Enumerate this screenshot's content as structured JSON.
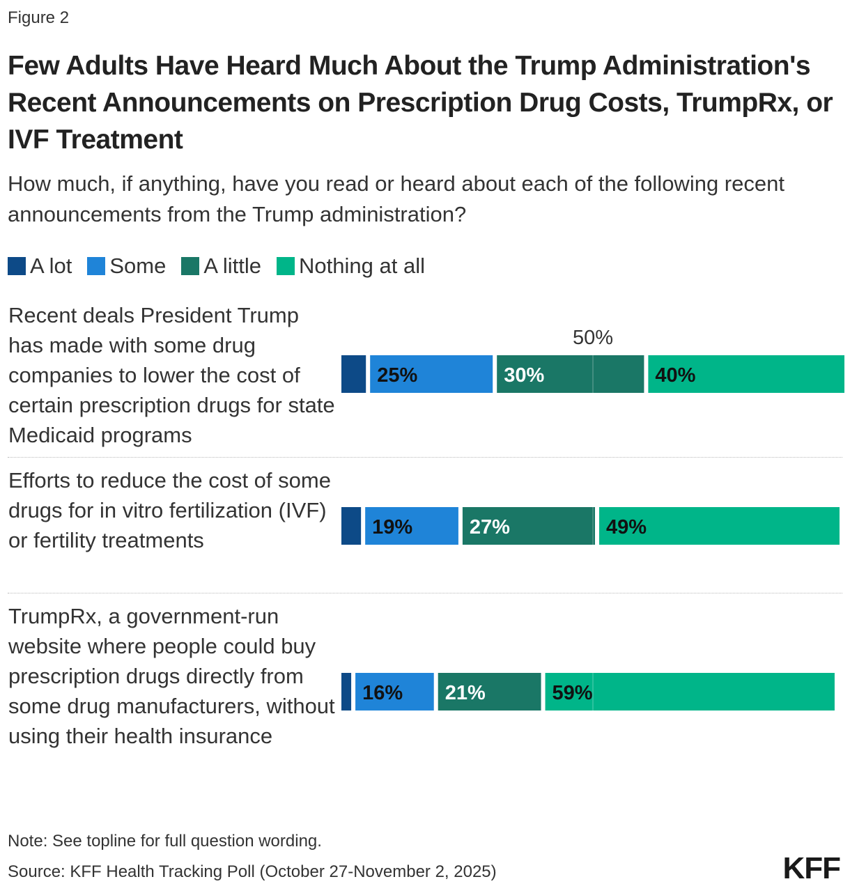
{
  "figure_label": "Figure 2",
  "title": "Few Adults Have Heard Much About the Trump Administration's Recent Announcements on Prescription Drug Costs, TrumpRx, or IVF Treatment",
  "subtitle": "How much, if anything, have you read or heard about each of the following recent announcements from the Trump administration?",
  "note": "Note: See topline for full question wording.",
  "source": "Source: KFF Health Tracking Poll (October 27-November 2, 2025)",
  "logo": "KFF",
  "chart_data": {
    "type": "bar",
    "orientation": "horizontal",
    "stacked": true,
    "xlim": [
      0,
      100
    ],
    "reference_line": {
      "value": 50,
      "label": "50%"
    },
    "legend_position": "top-left",
    "categories": [
      "Recent deals President Trump has made with some drug companies to lower the cost of certain prescription drugs for state Medicaid programs",
      "Efforts to reduce the cost of some drugs for in vitro fertilization (IVF) or fertility treatments",
      "TrumpRx, a government-run website where people could buy prescription drugs directly from some drug manufacturers, without using their health insurance"
    ],
    "series": [
      {
        "name": "A lot",
        "color": "#0d4a87",
        "values": [
          5,
          4,
          2
        ],
        "labels": [
          "",
          "",
          ""
        ]
      },
      {
        "name": "Some",
        "color": "#1f84d8",
        "values": [
          25,
          19,
          16
        ],
        "labels": [
          "25%",
          "19%",
          "16%"
        ]
      },
      {
        "name": "A little",
        "color": "#1a7766",
        "values": [
          30,
          27,
          21
        ],
        "labels": [
          "30%",
          "27%",
          "21%"
        ]
      },
      {
        "name": "Nothing at all",
        "color": "#00b589",
        "values": [
          40,
          49,
          59
        ],
        "labels": [
          "40%",
          "49%",
          "59%"
        ]
      }
    ]
  }
}
